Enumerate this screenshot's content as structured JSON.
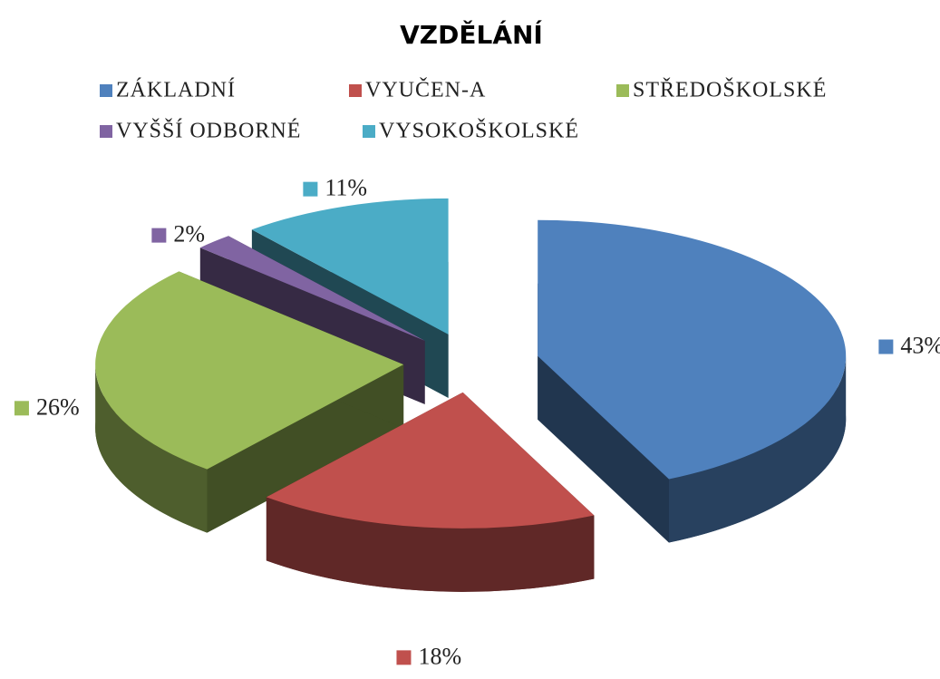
{
  "chart_data": {
    "type": "pie3d",
    "title": "VZDĚLÁNÍ",
    "categories": [
      "ZÁKLADNÍ",
      "VYUČEN-A",
      "STŘEDOŠKOLSKÉ",
      "VYŠŠÍ ODBORNÉ",
      "VYSOKOŠKOLSKÉ"
    ],
    "values": [
      43,
      18,
      26,
      2,
      11
    ],
    "value_labels": [
      "43%",
      "18%",
      "26%",
      "2%",
      "11%"
    ],
    "colors": [
      "#4f81bd",
      "#c0504d",
      "#9bbb59",
      "#8064a2",
      "#4bacc6"
    ],
    "legend": "top"
  }
}
